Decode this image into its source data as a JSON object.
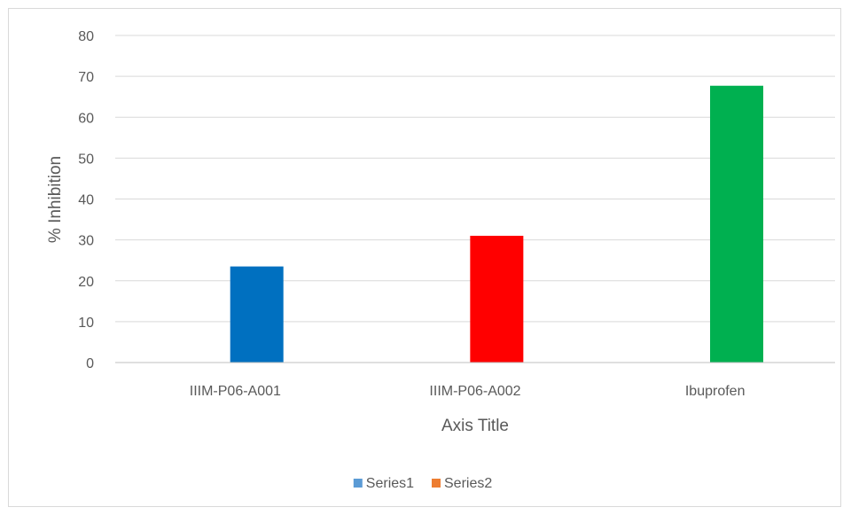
{
  "chart_data": {
    "type": "bar",
    "categories": [
      "IIIM-P06-A001",
      "IIIM-P06-A002",
      "Ibuprofen"
    ],
    "values": [
      23.5,
      31,
      67.7
    ],
    "bar_colors": [
      "#0070c0",
      "#ff0000",
      "#00b050"
    ],
    "series": [
      {
        "name": "Series1",
        "values": [
          23.5,
          31,
          67.7
        ],
        "color": "#5b9bd5"
      },
      {
        "name": "Series2",
        "values": [
          null,
          null,
          null
        ],
        "color": "#ed7d31"
      }
    ],
    "xlabel": "Axis Title",
    "ylabel": "% Inhibition",
    "ylim": [
      0,
      80
    ],
    "yticks": [
      0,
      10,
      20,
      30,
      40,
      50,
      60,
      70,
      80
    ],
    "grid": true,
    "legend_position": "bottom"
  }
}
